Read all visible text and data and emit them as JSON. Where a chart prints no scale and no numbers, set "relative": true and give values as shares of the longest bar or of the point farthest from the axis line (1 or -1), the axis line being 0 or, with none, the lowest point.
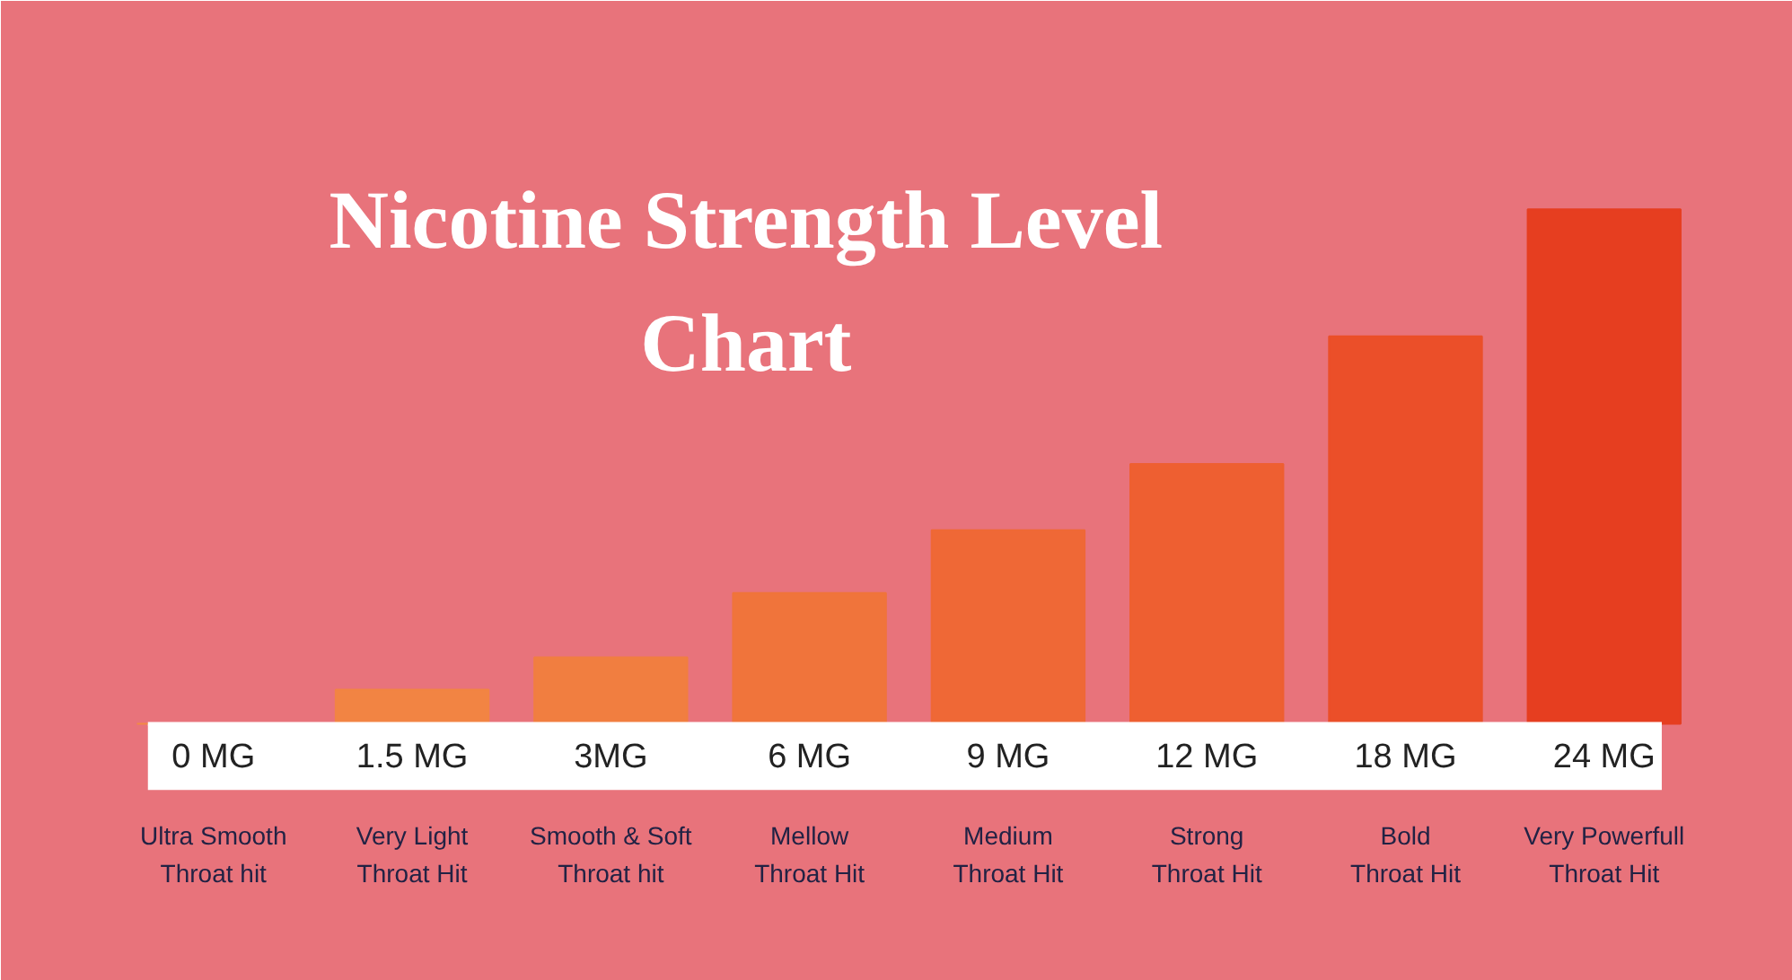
{
  "chart_data": {
    "type": "bar",
    "title": "Nicotine Strength Level\nChart",
    "categories": [
      "0 MG",
      "1.5 MG",
      "3MG",
      "6 MG",
      "9 MG",
      "12 MG",
      "18 MG",
      "24 MG"
    ],
    "values": [
      0,
      0.066,
      0.129,
      0.254,
      0.376,
      0.505,
      0.753,
      1
    ],
    "colors": [
      "#f28a45",
      "#f28443",
      "#f17e40",
      "#f0743b",
      "#ef6836",
      "#ee5f31",
      "#eb4f29",
      "#e63e20"
    ],
    "relative": true,
    "annotations": [
      "Ultra Smooth\nThroat hit",
      "Very Light\nThroat Hit",
      "Smooth & Soft\nThroat hit",
      "Mellow\nThroat Hit",
      "Medium\nThroat Hit",
      "Strong\nThroat Hit",
      "Bold\nThroat Hit",
      "Very Powerfull\nThroat Hit"
    ]
  }
}
